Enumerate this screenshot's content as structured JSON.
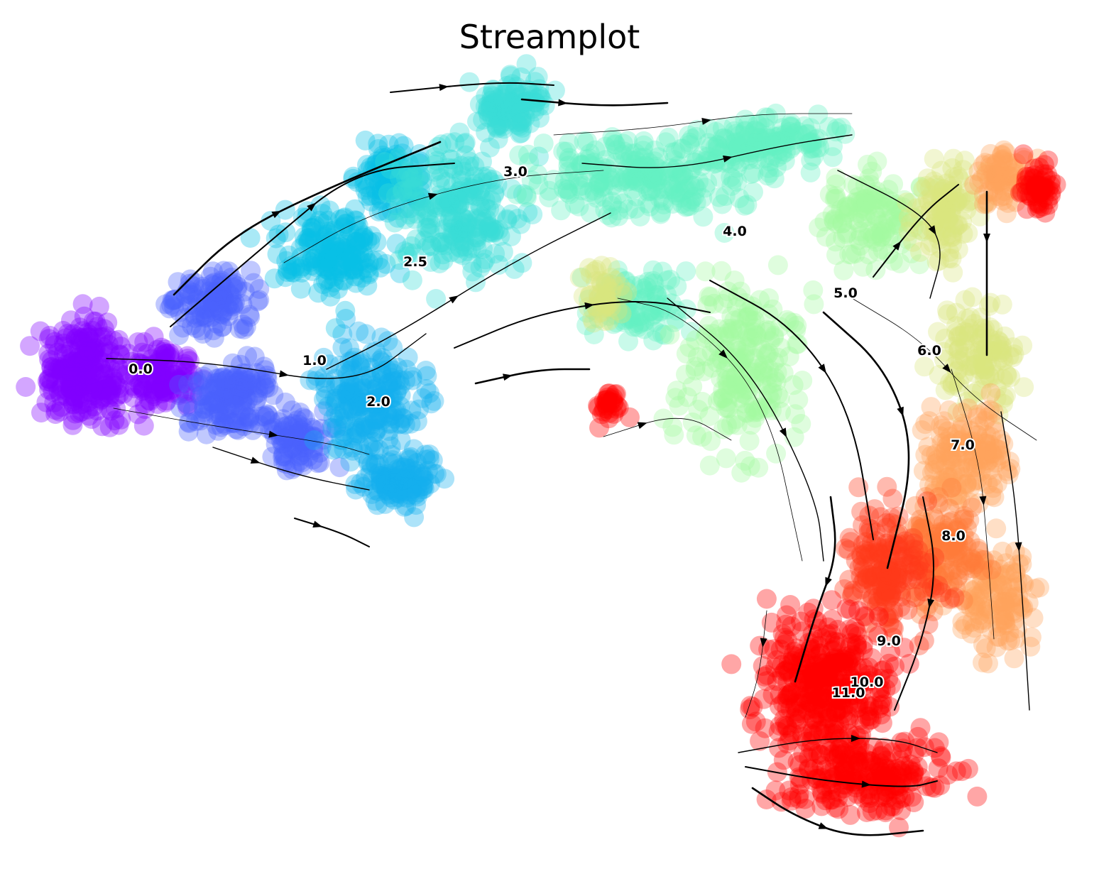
{
  "chart": {
    "title": "Streamplot"
  },
  "chart_data": {
    "type": "scatter",
    "title": "Streamplot",
    "xlabel": "",
    "ylabel": "",
    "axes_visible": false,
    "grid": false,
    "legend": "none",
    "colormap": "rainbow",
    "color_range": [
      0,
      11
    ],
    "clusters": [
      {
        "label": "0.0",
        "value": 0.0,
        "color": "#8000ff"
      },
      {
        "label": "1.0",
        "value": 1.0,
        "color": "#4a62fb"
      },
      {
        "label": "2.0",
        "value": 2.0,
        "color": "#13aeed"
      },
      {
        "label": "2.5",
        "value": 2.5,
        "color": "#08c0e4"
      },
      {
        "label": "3.0",
        "value": 3.0,
        "color": "#38dcd6"
      },
      {
        "label": "4.0",
        "value": 4.0,
        "color": "#64f2c4"
      },
      {
        "label": "5.0",
        "value": 5.0,
        "color": "#a4f9a0"
      },
      {
        "label": "6.0",
        "value": 6.0,
        "color": "#d9e67e"
      },
      {
        "label": "7.0",
        "value": 7.0,
        "color": "#ffa35c"
      },
      {
        "label": "8.0",
        "value": 8.0,
        "color": "#ff7a3a"
      },
      {
        "label": "9.0",
        "value": 9.0,
        "color": "#ff3a1a"
      },
      {
        "label": "10.0",
        "value": 10.0,
        "color": "#ff1a0d"
      },
      {
        "label": "11.0",
        "value": 11.0,
        "color": "#ff0000"
      }
    ],
    "annotations": [
      "0.0",
      "1.0",
      "2.0",
      "2.5",
      "3.0",
      "4.0",
      "5.0",
      "6.0",
      "7.0",
      "8.0",
      "9.0",
      "10.0",
      "11.0"
    ],
    "overlay": "velocity streamlines with arrowheads"
  }
}
